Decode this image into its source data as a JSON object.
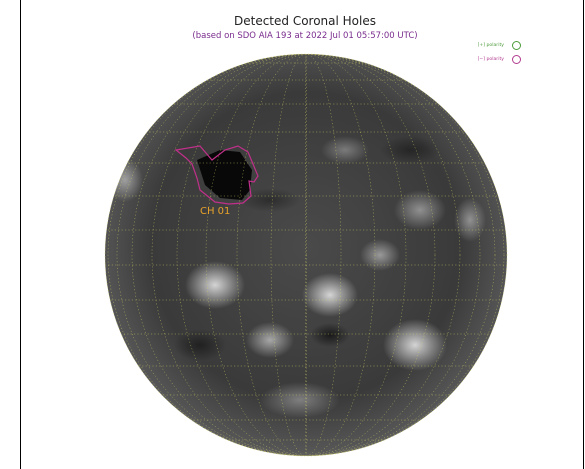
{
  "title": "Detected Coronal Holes",
  "subtitle": "(based on SDO AIA 193 at 2022 Jul 01 05:57:00 UTC)",
  "legend": [
    {
      "label": "[+] polarity",
      "color": "#4c9a3a"
    },
    {
      "label": "[−] polarity",
      "color": "#b23a8e"
    }
  ],
  "region_label": "CH 01",
  "colors": {
    "outline": "#c0308a",
    "label": "#e8a22a",
    "grid": "#d6d36a"
  }
}
